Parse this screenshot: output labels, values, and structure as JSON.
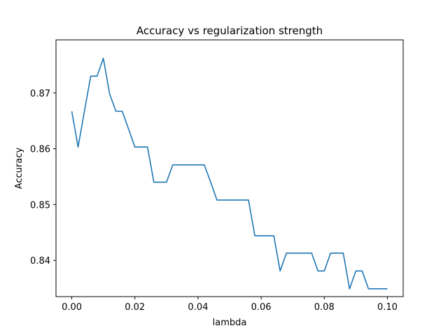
{
  "chart_data": {
    "type": "line",
    "title": "Accuracy vs regularization strength",
    "xlabel": "lambda",
    "ylabel": "Accuracy",
    "xlim": [
      -0.005,
      0.105
    ],
    "ylim": [
      0.8335,
      0.8795
    ],
    "x_ticks": [
      0.0,
      0.02,
      0.04,
      0.06,
      0.08,
      0.1
    ],
    "x_tick_labels": [
      "0.00",
      "0.02",
      "0.04",
      "0.06",
      "0.08",
      "0.10"
    ],
    "y_ticks": [
      0.84,
      0.85,
      0.86,
      0.87
    ],
    "y_tick_labels": [
      "0.84",
      "0.85",
      "0.86",
      "0.87"
    ],
    "grid": false,
    "series": [
      {
        "color": "#1f77b4",
        "x": [
          0.0,
          0.002,
          0.004,
          0.006,
          0.008,
          0.01,
          0.012,
          0.014,
          0.016,
          0.018,
          0.02,
          0.022,
          0.024,
          0.026,
          0.028,
          0.03,
          0.032,
          0.034,
          0.036,
          0.038,
          0.04,
          0.042,
          0.044,
          0.046,
          0.048,
          0.05,
          0.052,
          0.054,
          0.056,
          0.058,
          0.06,
          0.062,
          0.064,
          0.066,
          0.068,
          0.07,
          0.072,
          0.074,
          0.076,
          0.078,
          0.08,
          0.082,
          0.084,
          0.086,
          0.088,
          0.09,
          0.092,
          0.094,
          0.096,
          0.098,
          0.1
        ],
        "y": [
          0.8667,
          0.8603,
          0.8667,
          0.873,
          0.873,
          0.8762,
          0.8698,
          0.8667,
          0.8667,
          0.8635,
          0.8603,
          0.8603,
          0.8603,
          0.854,
          0.854,
          0.854,
          0.8571,
          0.8571,
          0.8571,
          0.8571,
          0.8571,
          0.8571,
          0.854,
          0.8508,
          0.8508,
          0.8508,
          0.8508,
          0.8508,
          0.8508,
          0.8444,
          0.8444,
          0.8444,
          0.8444,
          0.8381,
          0.8413,
          0.8413,
          0.8413,
          0.8413,
          0.8413,
          0.8381,
          0.8381,
          0.8413,
          0.8413,
          0.8413,
          0.8349,
          0.8381,
          0.8381,
          0.8349,
          0.8349,
          0.8349,
          0.8349
        ]
      }
    ]
  }
}
